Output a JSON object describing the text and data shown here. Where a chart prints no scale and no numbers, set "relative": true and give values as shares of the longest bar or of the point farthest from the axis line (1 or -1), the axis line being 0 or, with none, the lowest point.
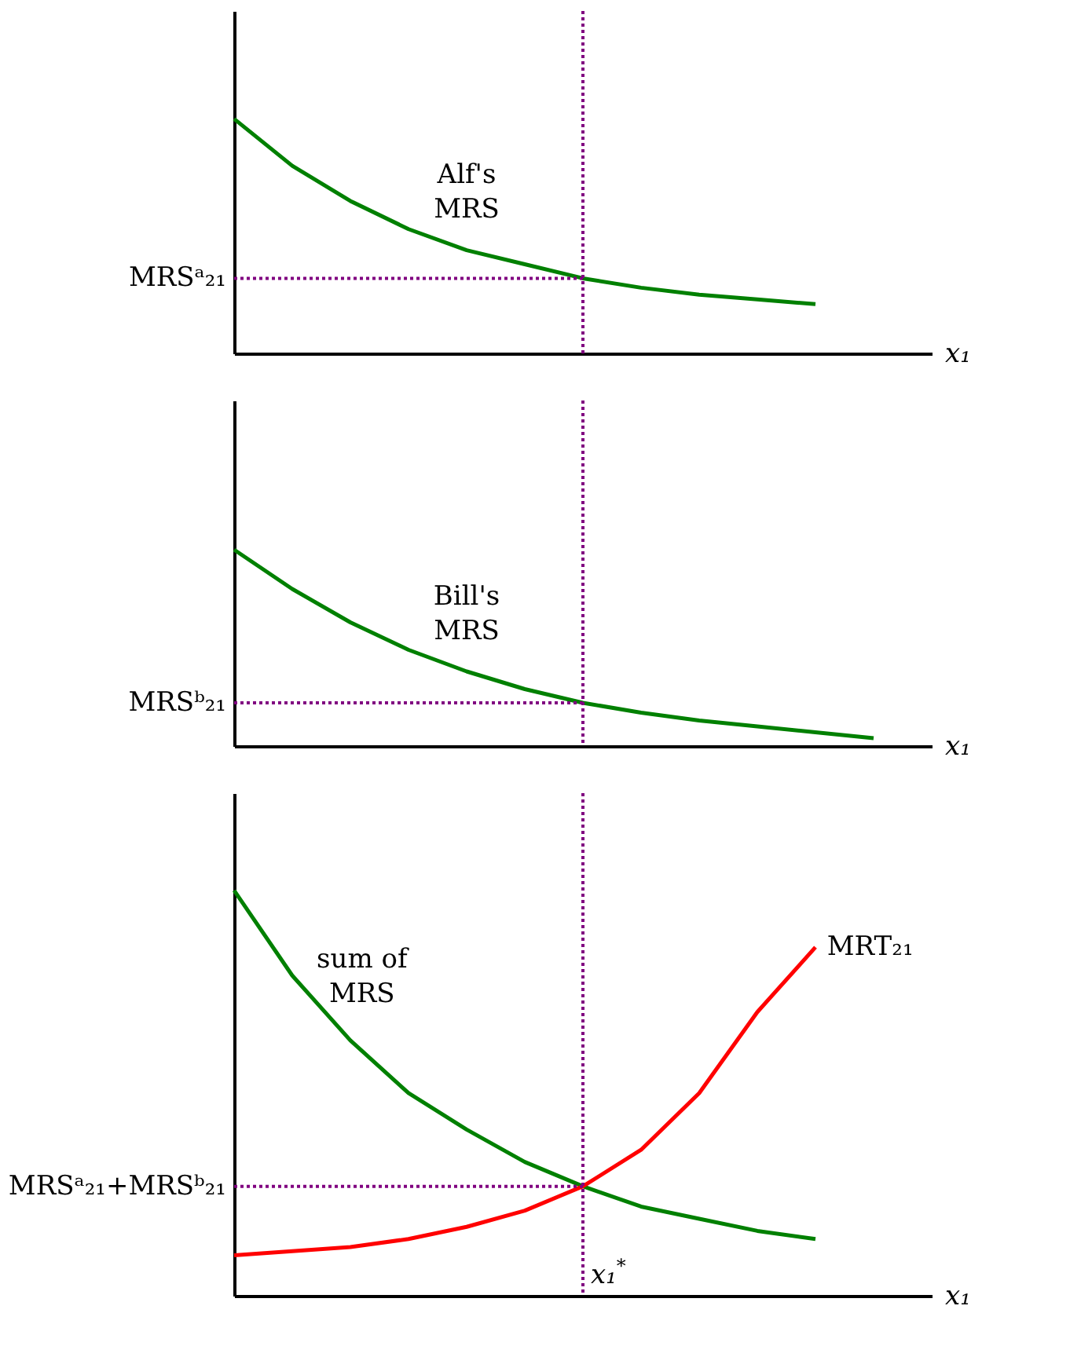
{
  "chart_data": [
    {
      "type": "line",
      "relative": true,
      "xlabel": "x₁",
      "categories": [
        null,
        null,
        null,
        null,
        null,
        null,
        null,
        null,
        null,
        null,
        null,
        null,
        null
      ],
      "series": [
        {
          "name": "Alf's MRS",
          "color": "#008000",
          "values": [
            1,
            0.8,
            0.65,
            0.53,
            0.44,
            0.38,
            0.32,
            0.28,
            0.25,
            0.23,
            0.21,
            null,
            null
          ]
        }
      ],
      "ref_lines": [
        {
          "axis": "y",
          "value": 0.32,
          "label": "MRSᵃ₂₁",
          "color": "#800080",
          "line_style": "dotted"
        }
      ]
    },
    {
      "type": "line",
      "relative": true,
      "xlabel": "x₁",
      "categories": [
        null,
        null,
        null,
        null,
        null,
        null,
        null,
        null,
        null,
        null,
        null,
        null,
        null
      ],
      "series": [
        {
          "name": "Bill's MRS",
          "color": "#008000",
          "values": [
            1,
            0.8,
            0.63,
            0.49,
            0.38,
            0.29,
            0.22,
            0.17,
            0.13,
            0.1,
            0.07,
            0.04,
            null
          ]
        }
      ],
      "ref_lines": [
        {
          "axis": "y",
          "value": 0.22,
          "label": "MRSᵇ₂₁",
          "color": "#800080",
          "line_style": "dotted"
        }
      ]
    },
    {
      "type": "line",
      "relative": true,
      "xlabel": "x₁",
      "categories": [
        null,
        null,
        null,
        null,
        null,
        null,
        null,
        null,
        null,
        null,
        null,
        null,
        null
      ],
      "series": [
        {
          "name": "sum of MRS",
          "color": "#008000",
          "values": [
            1,
            0.79,
            0.63,
            0.5,
            0.41,
            0.33,
            0.27,
            0.22,
            0.19,
            0.16,
            0.14,
            null,
            null
          ]
        },
        {
          "name": "MRT₂₁",
          "color": "#ff0000",
          "values": [
            0.1,
            0.11,
            0.12,
            0.14,
            0.17,
            0.21,
            0.27,
            0.36,
            0.5,
            0.7,
            0.86,
            null,
            null
          ]
        }
      ],
      "ref_lines": [
        {
          "axis": "y",
          "value": 0.27,
          "label": "MRSᵃ₂₁+MRSᵇ₂₁",
          "color": "#800080",
          "line_style": "dotted"
        }
      ],
      "annotations": [
        "x₁$^{*}$"
      ]
    }
  ]
}
